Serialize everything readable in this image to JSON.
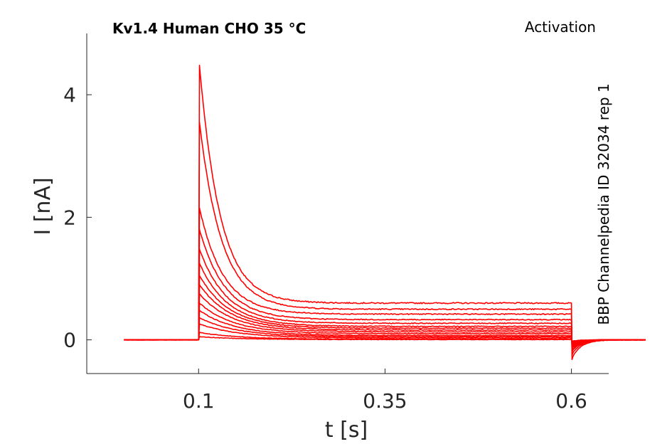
{
  "chart_data": {
    "type": "line",
    "title": "Kv1.4  Human  CHO  35 °C",
    "annotation_right": "Activation",
    "side_label": "BBP Channelpedia ID 32034 rep 1",
    "xlabel": "t [s]",
    "ylabel": "I [nA]",
    "xlim": [
      -0.05,
      0.65
    ],
    "ylim": [
      -0.55,
      5.0
    ],
    "x_ticks": [
      0.1,
      0.35,
      0.6
    ],
    "x_tick_labels": [
      "0.1",
      "0.35",
      "0.6"
    ],
    "y_ticks": [
      0,
      2,
      4
    ],
    "y_tick_labels": [
      "0",
      "2",
      "4"
    ],
    "grid": false,
    "line_color": "#ff0000",
    "step_on": 0.1,
    "step_off": 0.6,
    "series": [
      {
        "peak": 4.48,
        "steady": 0.6,
        "tail": -0.32
      },
      {
        "peak": 3.55,
        "steady": 0.5,
        "tail": -0.25
      },
      {
        "peak": 2.15,
        "steady": 0.42,
        "tail": -0.2
      },
      {
        "peak": 1.8,
        "steady": 0.33,
        "tail": -0.17
      },
      {
        "peak": 1.48,
        "steady": 0.27,
        "tail": -0.14
      },
      {
        "peak": 1.25,
        "steady": 0.22,
        "tail": -0.12
      },
      {
        "peak": 1.05,
        "steady": 0.19,
        "tail": -0.1
      },
      {
        "peak": 0.9,
        "steady": 0.16,
        "tail": -0.09
      },
      {
        "peak": 0.75,
        "steady": 0.13,
        "tail": -0.08
      },
      {
        "peak": 0.6,
        "steady": 0.1,
        "tail": -0.07
      },
      {
        "peak": 0.48,
        "steady": 0.07,
        "tail": -0.06
      },
      {
        "peak": 0.36,
        "steady": 0.05,
        "tail": -0.05
      },
      {
        "peak": 0.26,
        "steady": 0.03,
        "tail": -0.04
      },
      {
        "peak": 0.12,
        "steady": 0.01,
        "tail": -0.03
      },
      {
        "peak": 0.05,
        "steady": 0.005,
        "tail": -0.02
      }
    ]
  }
}
